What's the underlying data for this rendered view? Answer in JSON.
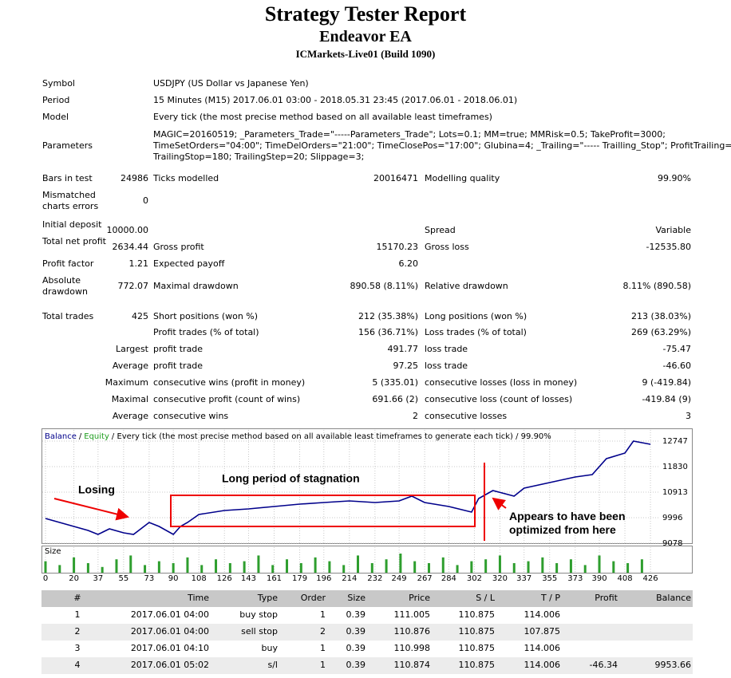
{
  "header": {
    "title": "Strategy Tester Report",
    "subtitle": "Endeavor EA",
    "server": "ICMarkets-Live01 (Build 1090)"
  },
  "summary": {
    "rows": [
      [
        "Symbol",
        null,
        "USDJPY (US Dollar vs Japanese Yen)",
        null,
        null,
        null
      ],
      [
        "Period",
        null,
        "15 Minutes (M15) 2017.06.01 03:00 - 2018.05.31 23:45 (2017.06.01 - 2018.06.01)",
        null,
        null,
        null
      ],
      [
        "Model",
        null,
        "Every tick (the most precise method based on all available least timeframes)",
        null,
        null,
        null
      ],
      [
        "Parameters",
        null,
        [
          "MAGIC=20160519; _Parameters_Trade=\"-----Parameters_Trade\"; Lots=0.1; MM=true; MMRisk=0.5; TakeProfit=3000;",
          "TimeSetOrders=\"04:00\"; TimeDelOrders=\"21:00\"; TimeClosePos=\"17:00\"; Glubina=4; _Trailing=\"----- Trailling_Stop\"; ProfitTrailing=false;",
          "TrailingStop=180; TrailingStep=20; Slippage=3;"
        ],
        null,
        null,
        null
      ],
      [
        "Bars in test",
        "24986",
        "Ticks modelled",
        "20016471",
        "Modelling quality",
        "99.90%"
      ],
      [
        "Mismatched charts errors",
        "0",
        null,
        null,
        null,
        null
      ],
      [
        "Initial deposit",
        "10000.00",
        null,
        null,
        "Spread",
        "Variable"
      ],
      [
        "Total net profit",
        "2634.44",
        "Gross profit",
        "15170.23",
        "Gross loss",
        "-12535.80"
      ],
      [
        "Profit factor",
        "1.21",
        "Expected payoff",
        "6.20",
        null,
        null
      ],
      [
        "Absolute drawdown",
        "772.07",
        "Maximal drawdown",
        "890.58 (8.11%)",
        "Relative drawdown",
        "8.11% (890.58)"
      ],
      [
        "Total trades",
        "425",
        "Short positions (won %)",
        "212 (35.38%)",
        "Long positions (won %)",
        "213 (38.03%)"
      ],
      [
        null,
        null,
        "Profit trades (% of total)",
        "156 (36.71%)",
        "Loss trades (% of total)",
        "269 (63.29%)"
      ],
      [
        null,
        "Largest",
        "profit trade",
        "491.77",
        "loss trade",
        "-75.47"
      ],
      [
        null,
        "Average",
        "profit trade",
        "97.25",
        "loss trade",
        "-46.60"
      ],
      [
        null,
        "Maximum",
        "consecutive wins (profit in money)",
        "5 (335.01)",
        "consecutive losses (loss in money)",
        "9 (-419.84)"
      ],
      [
        null,
        "Maximal",
        "consecutive profit (count of wins)",
        "691.66 (2)",
        "consecutive loss (count of losses)",
        "-419.84 (9)"
      ],
      [
        null,
        "Average",
        "consecutive wins",
        "2",
        "consecutive losses",
        "3"
      ]
    ]
  },
  "chart": {
    "type": "line",
    "separator": "/",
    "caption": "/ Every tick (the most precise method based on all available least timeframes to generate each tick) / 99.90%",
    "series": [
      {
        "name": "Balance",
        "color": "#00008b",
        "x": [
          0,
          10,
          20,
          30,
          37,
          45,
          55,
          62,
          73,
          80,
          90,
          95,
          100,
          108,
          126,
          143,
          161,
          179,
          196,
          214,
          232,
          249,
          258,
          267,
          284,
          300,
          305,
          315,
          330,
          337,
          355,
          373,
          385,
          395,
          408,
          414,
          426
        ],
        "values": [
          9967,
          9824,
          9680,
          9537,
          9394,
          9594,
          9451,
          9394,
          9824,
          9680,
          9394,
          9680,
          9824,
          10110,
          10253,
          10311,
          10397,
          10483,
          10540,
          10597,
          10540,
          10597,
          10769,
          10540,
          10397,
          10196,
          10683,
          10970,
          10769,
          11056,
          11257,
          11457,
          11543,
          12116,
          12317,
          12747,
          12634
        ]
      },
      {
        "name": "Equity",
        "color": "#1f9e1f"
      }
    ],
    "xlim": [
      0,
      430
    ],
    "xticks": [
      0,
      20,
      37,
      55,
      73,
      90,
      108,
      126,
      143,
      161,
      179,
      196,
      214,
      232,
      249,
      267,
      284,
      302,
      320,
      337,
      355,
      373,
      390,
      408,
      426
    ],
    "ylim": [
      9049,
      13120
    ],
    "yticks": [
      12747,
      11830,
      10913,
      9996,
      9078
    ],
    "grid": true,
    "size_panel": {
      "label": "Size",
      "color": "#2e9e2e",
      "ylim": [
        0,
        1
      ],
      "x": [
        0,
        10,
        20,
        30,
        40,
        50,
        60,
        70,
        80,
        90,
        100,
        110,
        120,
        130,
        140,
        150,
        160,
        170,
        180,
        190,
        200,
        210,
        220,
        230,
        240,
        250,
        260,
        270,
        280,
        290,
        300,
        310,
        320,
        330,
        340,
        350,
        360,
        370,
        380,
        390,
        400,
        410,
        420
      ],
      "values": [
        0.6,
        0.4,
        0.8,
        0.5,
        0.3,
        0.7,
        0.9,
        0.4,
        0.6,
        0.5,
        0.8,
        0.4,
        0.7,
        0.5,
        0.6,
        0.9,
        0.4,
        0.7,
        0.5,
        0.8,
        0.6,
        0.4,
        0.9,
        0.5,
        0.7,
        1.0,
        0.6,
        0.5,
        0.8,
        0.4,
        0.6,
        0.7,
        0.9,
        0.5,
        0.6,
        0.8,
        0.5,
        0.7,
        0.4,
        0.9,
        0.6,
        0.5,
        0.7
      ]
    },
    "annotations": [
      "Losing",
      "Long period of stagnation",
      "Appears to have been optimized from here"
    ]
  },
  "trades": {
    "columns": [
      "#",
      "Time",
      "Type",
      "Order",
      "Size",
      "Price",
      "S / L",
      "T / P",
      "Profit",
      "Balance"
    ],
    "rows": [
      [
        "1",
        "2017.06.01 04:00",
        "buy stop",
        "1",
        "0.39",
        "111.005",
        "110.875",
        "114.006",
        null,
        null
      ],
      [
        "2",
        "2017.06.01 04:00",
        "sell stop",
        "2",
        "0.39",
        "110.876",
        "110.875",
        "107.875",
        null,
        null
      ],
      [
        "3",
        "2017.06.01 04:10",
        "buy",
        "1",
        "0.39",
        "110.998",
        "110.875",
        "114.006",
        null,
        null
      ],
      [
        "4",
        "2017.06.01 05:02",
        "s/l",
        "1",
        "0.39",
        "110.874",
        "110.875",
        "114.006",
        "-46.34",
        "9953.66"
      ]
    ]
  }
}
